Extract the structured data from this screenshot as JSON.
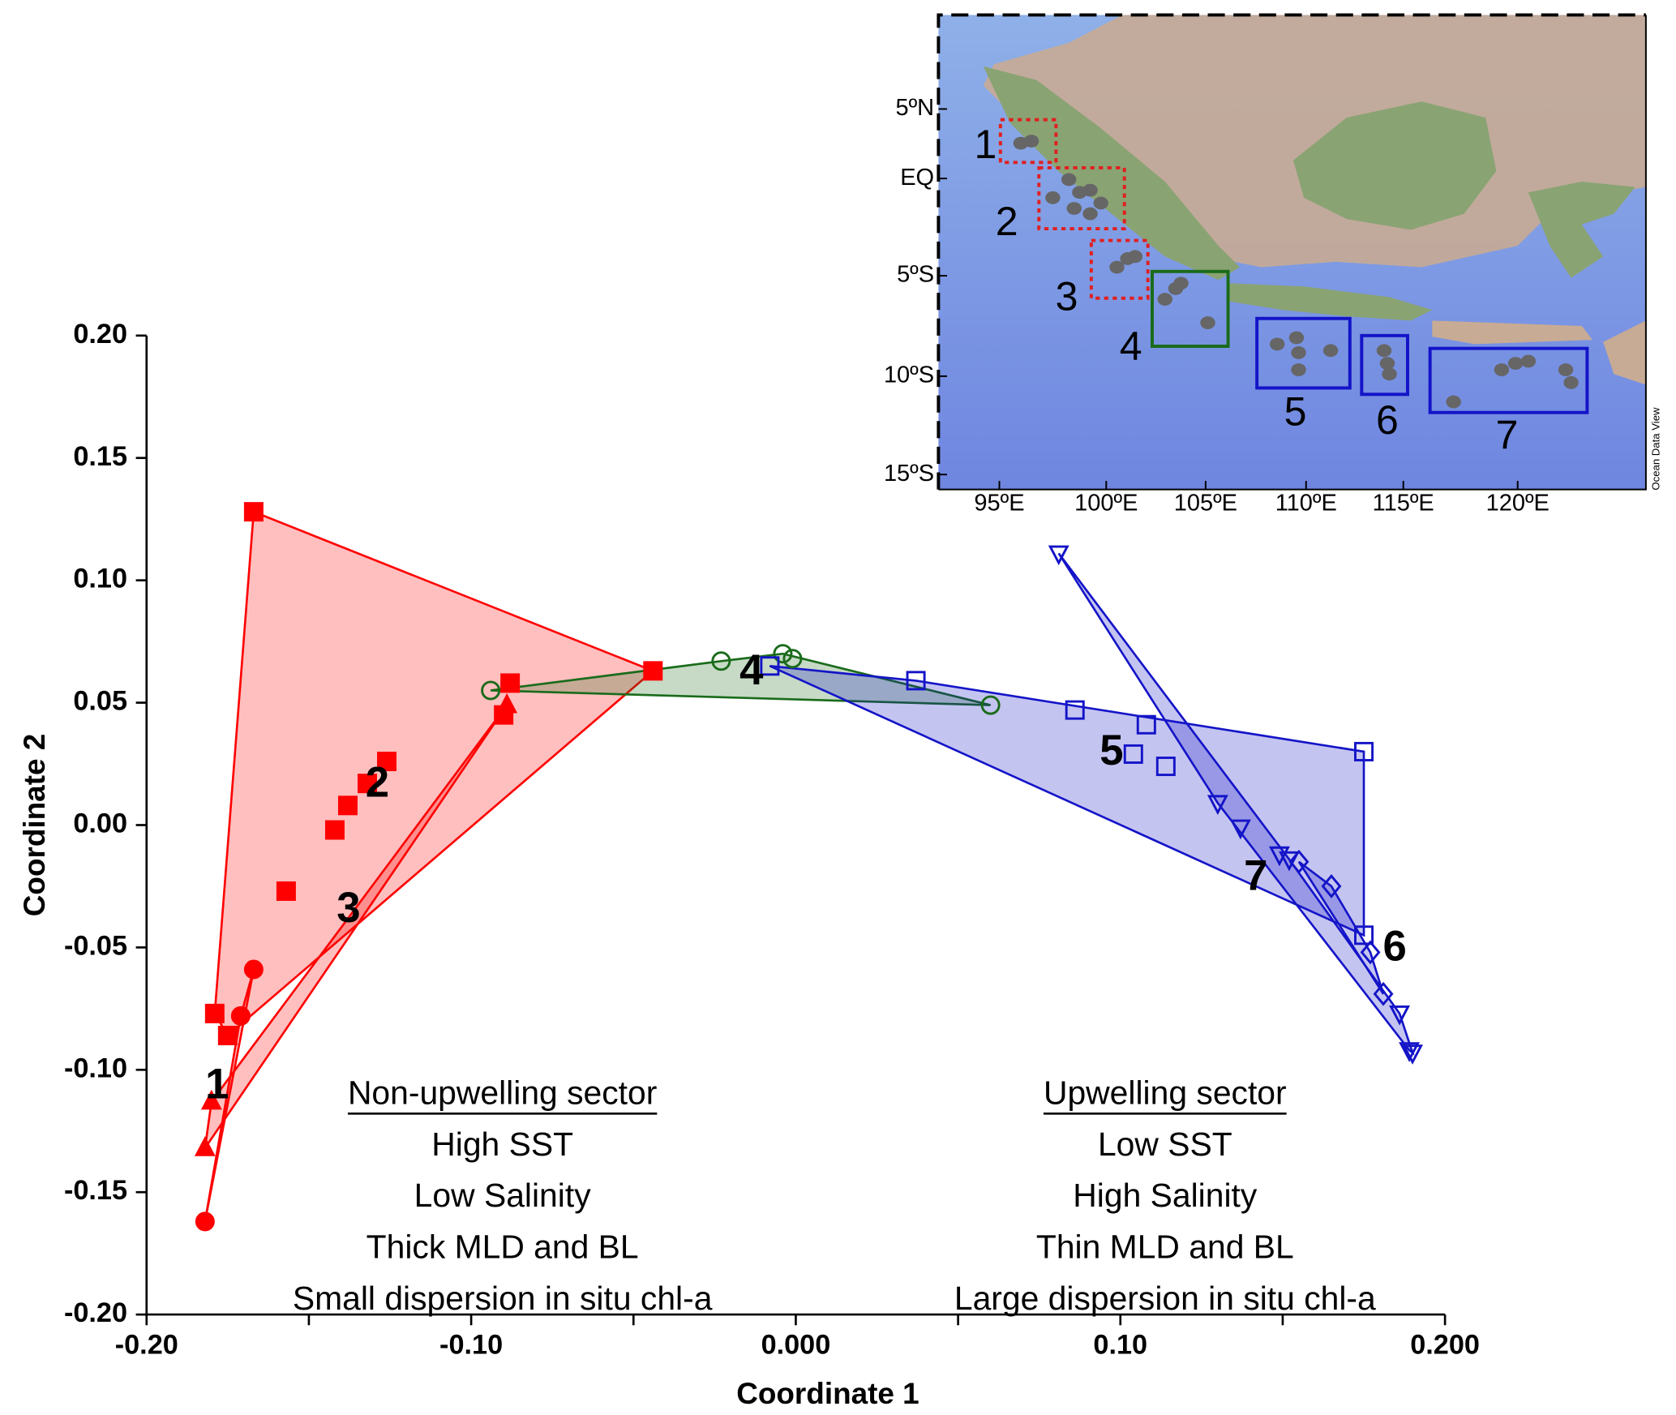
{
  "chart_data": {
    "type": "scatter",
    "x_label": "Coordinate 1",
    "y_label": "Coordinate 2",
    "xlim": [
      -0.2,
      0.2
    ],
    "ylim": [
      -0.2,
      0.2
    ],
    "xticks": [
      {
        "value": -0.2,
        "label": "-0.20"
      },
      {
        "value": -0.1,
        "label": "-0.10"
      },
      {
        "value": 0,
        "label": "0.000"
      },
      {
        "value": 0.1,
        "label": "0.10"
      },
      {
        "value": 0.2,
        "label": "0.200"
      }
    ],
    "xminorticks": [
      -0.15,
      -0.05,
      0.05,
      0.15
    ],
    "yticks": [
      {
        "value": 0.2,
        "label": "0.20"
      },
      {
        "value": 0.15,
        "label": "0.15"
      },
      {
        "value": 0.1,
        "label": "0.10"
      },
      {
        "value": 0.05,
        "label": "0.05"
      },
      {
        "value": 0,
        "label": "0.00"
      },
      {
        "value": -0.05,
        "label": "-0.05"
      },
      {
        "value": -0.1,
        "label": "-0.10"
      },
      {
        "value": -0.15,
        "label": "-0.15"
      },
      {
        "value": -0.2,
        "label": "-0.20"
      }
    ],
    "series": [
      {
        "name": "1",
        "color": "#ff0000",
        "marker": "circle",
        "filled": true,
        "x": [
          -0.167,
          -0.171,
          -0.182
        ],
        "y": [
          -0.059,
          -0.078,
          -0.162
        ]
      },
      {
        "name": "2",
        "color": "#ff0000",
        "marker": "square",
        "filled": true,
        "x": [
          -0.167,
          -0.044,
          -0.179,
          -0.088,
          -0.09,
          -0.126,
          -0.132,
          -0.138,
          -0.142,
          -0.157,
          -0.175
        ],
        "y": [
          0.128,
          0.063,
          -0.077,
          0.058,
          0.045,
          0.026,
          0.017,
          0.008,
          -0.002,
          -0.027,
          -0.086
        ]
      },
      {
        "name": "3",
        "color": "#ff0000",
        "marker": "triangle",
        "filled": true,
        "x": [
          -0.089,
          -0.18,
          -0.182
        ],
        "y": [
          0.049,
          -0.113,
          -0.132
        ]
      },
      {
        "name": "4",
        "color": "#1a6b1a",
        "marker": "circle",
        "filled": false,
        "x": [
          -0.094,
          -0.023,
          -0.004,
          -0.001,
          0.06
        ],
        "y": [
          0.055,
          0.067,
          0.07,
          0.068,
          0.049
        ]
      },
      {
        "name": "5",
        "color": "#1414c8",
        "marker": "square",
        "filled": false,
        "x": [
          -0.008,
          0.037,
          0.086,
          0.108,
          0.104,
          0.114,
          0.175,
          0.175
        ],
        "y": [
          0.065,
          0.059,
          0.047,
          0.041,
          0.029,
          0.024,
          0.03,
          -0.045
        ]
      },
      {
        "name": "6",
        "color": "#1414c8",
        "marker": "diamond",
        "filled": false,
        "x": [
          0.155,
          0.165,
          0.177,
          0.181
        ],
        "y": [
          -0.015,
          -0.025,
          -0.052,
          -0.069
        ]
      },
      {
        "name": "7",
        "color": "#1414c8",
        "marker": "triangle-down",
        "filled": false,
        "x": [
          0.081,
          0.13,
          0.137,
          0.149,
          0.152,
          0.186,
          0.189,
          0.19
        ],
        "y": [
          0.111,
          0.009,
          -0.001,
          -0.012,
          -0.014,
          -0.077,
          -0.092,
          -0.093
        ]
      }
    ],
    "annotations": [
      {
        "title": "Non-upwelling sector",
        "lines": [
          "High SST",
          "Low Salinity",
          "Thick MLD and BL",
          "Small dispersion in situ chl-a"
        ]
      },
      {
        "title": "Upwelling sector",
        "lines": [
          "Low SST",
          "High Salinity",
          "Thin MLD and BL",
          "Large dispersion in situ chl-a"
        ]
      }
    ],
    "inset_map": {
      "lat_labels": [
        "5ºN",
        "EQ",
        "5ºS",
        "10ºS",
        "15ºS"
      ],
      "lon_labels": [
        "95ºE",
        "100ºE",
        "105ºE",
        "110ºE",
        "115ºE",
        "120ºE"
      ],
      "boxes": [
        "1",
        "2",
        "3",
        "4",
        "5",
        "6",
        "7"
      ],
      "credit": "Ocean Data View"
    }
  }
}
